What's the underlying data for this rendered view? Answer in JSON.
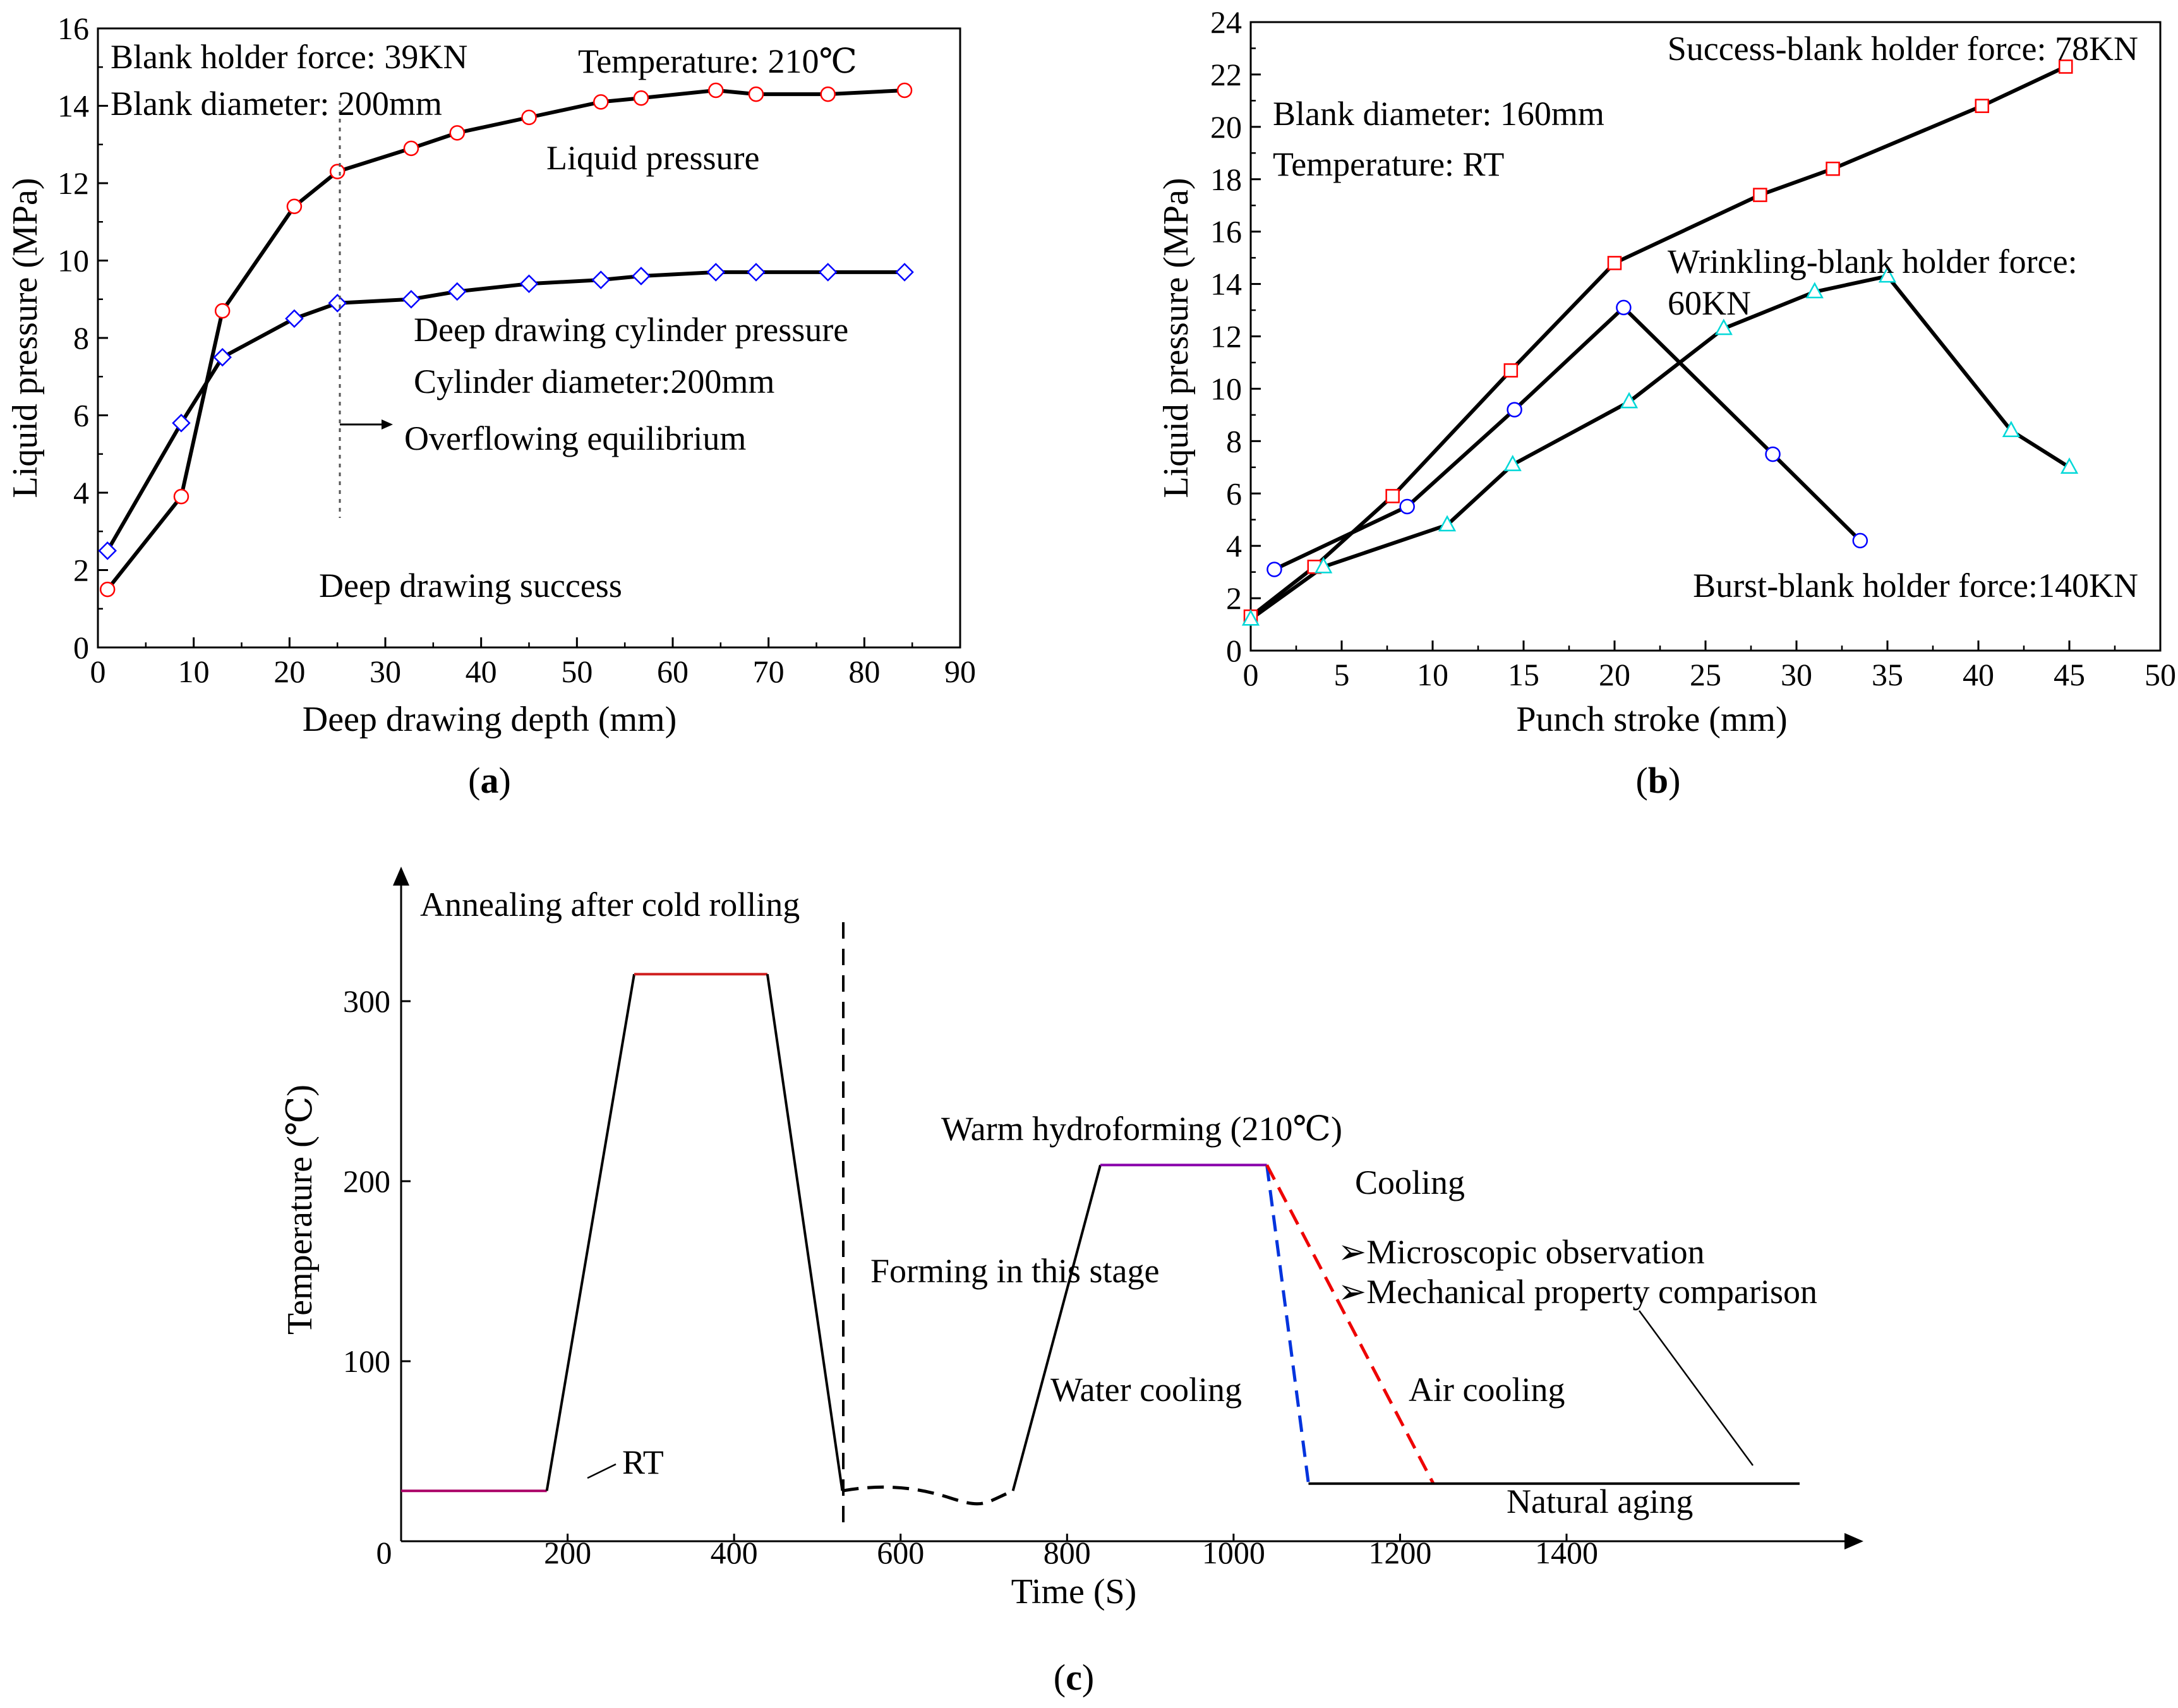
{
  "chart_data": [
    {
      "panel": "(a)",
      "type": "line",
      "xlabel": "Deep drawing depth (mm)",
      "ylabel": "Liquid pressure (MPa)",
      "xlim": [
        0,
        90
      ],
      "ylim": [
        0,
        16
      ],
      "xticks": [
        "0",
        "10",
        "20",
        "30",
        "40",
        "50",
        "60",
        "70",
        "80",
        "90"
      ],
      "yticks": [
        "0",
        "2",
        "4",
        "6",
        "8",
        "10",
        "12",
        "14",
        "16"
      ],
      "series": [
        {
          "name": "Liquid pressure",
          "marker": "circle",
          "color": "#ff0000",
          "x": [
            1,
            8.7,
            13,
            20.5,
            25,
            32.7,
            37.5,
            45,
            52.5,
            56.7,
            64.5,
            68.7,
            76.2,
            84.2
          ],
          "y": [
            1.5,
            3.9,
            8.7,
            11.4,
            12.3,
            12.9,
            13.3,
            13.7,
            14.1,
            14.2,
            14.4,
            14.3,
            14.3,
            14.4
          ]
        },
        {
          "name": "Deep drawing cylinder pressure",
          "marker": "diamond",
          "color": "#0000ff",
          "x": [
            1,
            8.7,
            13,
            20.5,
            25,
            32.7,
            37.5,
            45,
            52.5,
            56.7,
            64.5,
            68.7,
            76.2,
            84.2
          ],
          "y": [
            2.5,
            5.8,
            7.5,
            8.5,
            8.9,
            9.0,
            9.2,
            9.4,
            9.5,
            9.6,
            9.7,
            9.7,
            9.7,
            9.7
          ]
        }
      ],
      "annotations": [
        "Blank holder force: 39KN",
        "Blank diameter: 200mm",
        "Temperature: 210℃",
        "Liquid pressure",
        "Deep drawing cylinder pressure",
        "Cylinder diameter:200mm",
        "Overflowing equilibrium",
        "Deep drawing success"
      ]
    },
    {
      "panel": "(b)",
      "type": "line",
      "xlabel": "Punch stroke (mm)",
      "ylabel": "Liquid pressure (MPa)",
      "xlim": [
        0,
        50
      ],
      "ylim": [
        0,
        24
      ],
      "xticks": [
        "0",
        "5",
        "10",
        "15",
        "20",
        "25",
        "30",
        "35",
        "40",
        "45",
        "50"
      ],
      "yticks": [
        "0",
        "2",
        "4",
        "6",
        "8",
        "10",
        "12",
        "14",
        "16",
        "18",
        "20",
        "22",
        "24"
      ],
      "series": [
        {
          "name": "Success-blank holder force: 78KN",
          "marker": "square",
          "color": "#ff0000",
          "x": [
            0,
            3.5,
            7.8,
            14.3,
            20,
            28,
            32,
            40.2,
            44.8
          ],
          "y": [
            1.3,
            3.2,
            5.9,
            10.7,
            14.8,
            17.4,
            18.4,
            20.8,
            22.3
          ]
        },
        {
          "name": "Wrinkling-blank holder force: 60KN",
          "marker": "triangle",
          "color": "#00d8d8",
          "x": [
            0,
            4,
            10.8,
            14.4,
            20.8,
            26,
            31,
            35,
            41.8,
            45
          ],
          "y": [
            1.2,
            3.2,
            4.8,
            7.1,
            9.5,
            12.3,
            13.7,
            14.3,
            8.4,
            7.0
          ]
        },
        {
          "name": "Burst-blank holder force:140KN",
          "marker": "circle",
          "color": "#0000ff",
          "x": [
            1.3,
            8.6,
            14.5,
            20.5,
            28.7,
            33.5
          ],
          "y": [
            3.1,
            5.5,
            9.2,
            13.1,
            7.5,
            4.2
          ]
        }
      ],
      "annotations": [
        "Success-blank holder force: 78KN",
        "Blank diameter: 160mm",
        "Temperature: RT",
        "Wrinkling-blank holder force:",
        "60KN",
        "Burst-blank holder force:140KN"
      ]
    },
    {
      "panel": "(c)",
      "type": "line",
      "xlabel": "Time (S)",
      "ylabel": "Temperature (℃)",
      "xlim": [
        0,
        1780
      ],
      "ylim": [
        0,
        380
      ],
      "xticks": [
        "0",
        "200",
        "400",
        "600",
        "800",
        "1000",
        "1200",
        "1400"
      ],
      "yticks": [
        "100",
        "200",
        "300"
      ],
      "segments": [
        {
          "name": "RT hold",
          "color": "#aa0066",
          "x": [
            0,
            175
          ],
          "y": [
            28,
            28
          ]
        },
        {
          "name": "heating",
          "color": "#000000",
          "x": [
            175,
            280
          ],
          "y": [
            28,
            315
          ]
        },
        {
          "name": "annealing hold",
          "color": "#d02020",
          "x": [
            280,
            440
          ],
          "y": [
            315,
            315
          ]
        },
        {
          "name": "cooling after annealing",
          "color": "#000000",
          "x": [
            440,
            530
          ],
          "y": [
            315,
            28
          ]
        },
        {
          "name": "storage",
          "color": "#000000",
          "dash": true,
          "x": [
            530,
            580,
            620,
            660,
            700,
            735
          ],
          "y": [
            28,
            32,
            30,
            24,
            21,
            28
          ]
        },
        {
          "name": "heating to 210",
          "color": "#000000",
          "x": [
            735,
            840
          ],
          "y": [
            28,
            209
          ]
        },
        {
          "name": "warm hydroforming hold",
          "color": "#8800aa",
          "x": [
            840,
            1040
          ],
          "y": [
            209,
            209
          ]
        },
        {
          "name": "water cooling",
          "color": "#0033dd",
          "dash": true,
          "x": [
            1040,
            1090
          ],
          "y": [
            209,
            32
          ]
        },
        {
          "name": "air cooling",
          "color": "#ee0000",
          "dash": true,
          "x": [
            1040,
            1240
          ],
          "y": [
            209,
            32
          ]
        },
        {
          "name": "natural aging",
          "color": "#000000",
          "x": [
            1090,
            1680
          ],
          "y": [
            32,
            32
          ]
        }
      ],
      "annotations": [
        "Annealing after cold rolling",
        "RT",
        "Forming in this stage",
        "Warm hydroforming (210℃)",
        "Cooling",
        "➢Microscopic observation",
        "➢Mechanical property comparison",
        "Water cooling",
        "Air cooling",
        "Natural aging"
      ]
    }
  ]
}
